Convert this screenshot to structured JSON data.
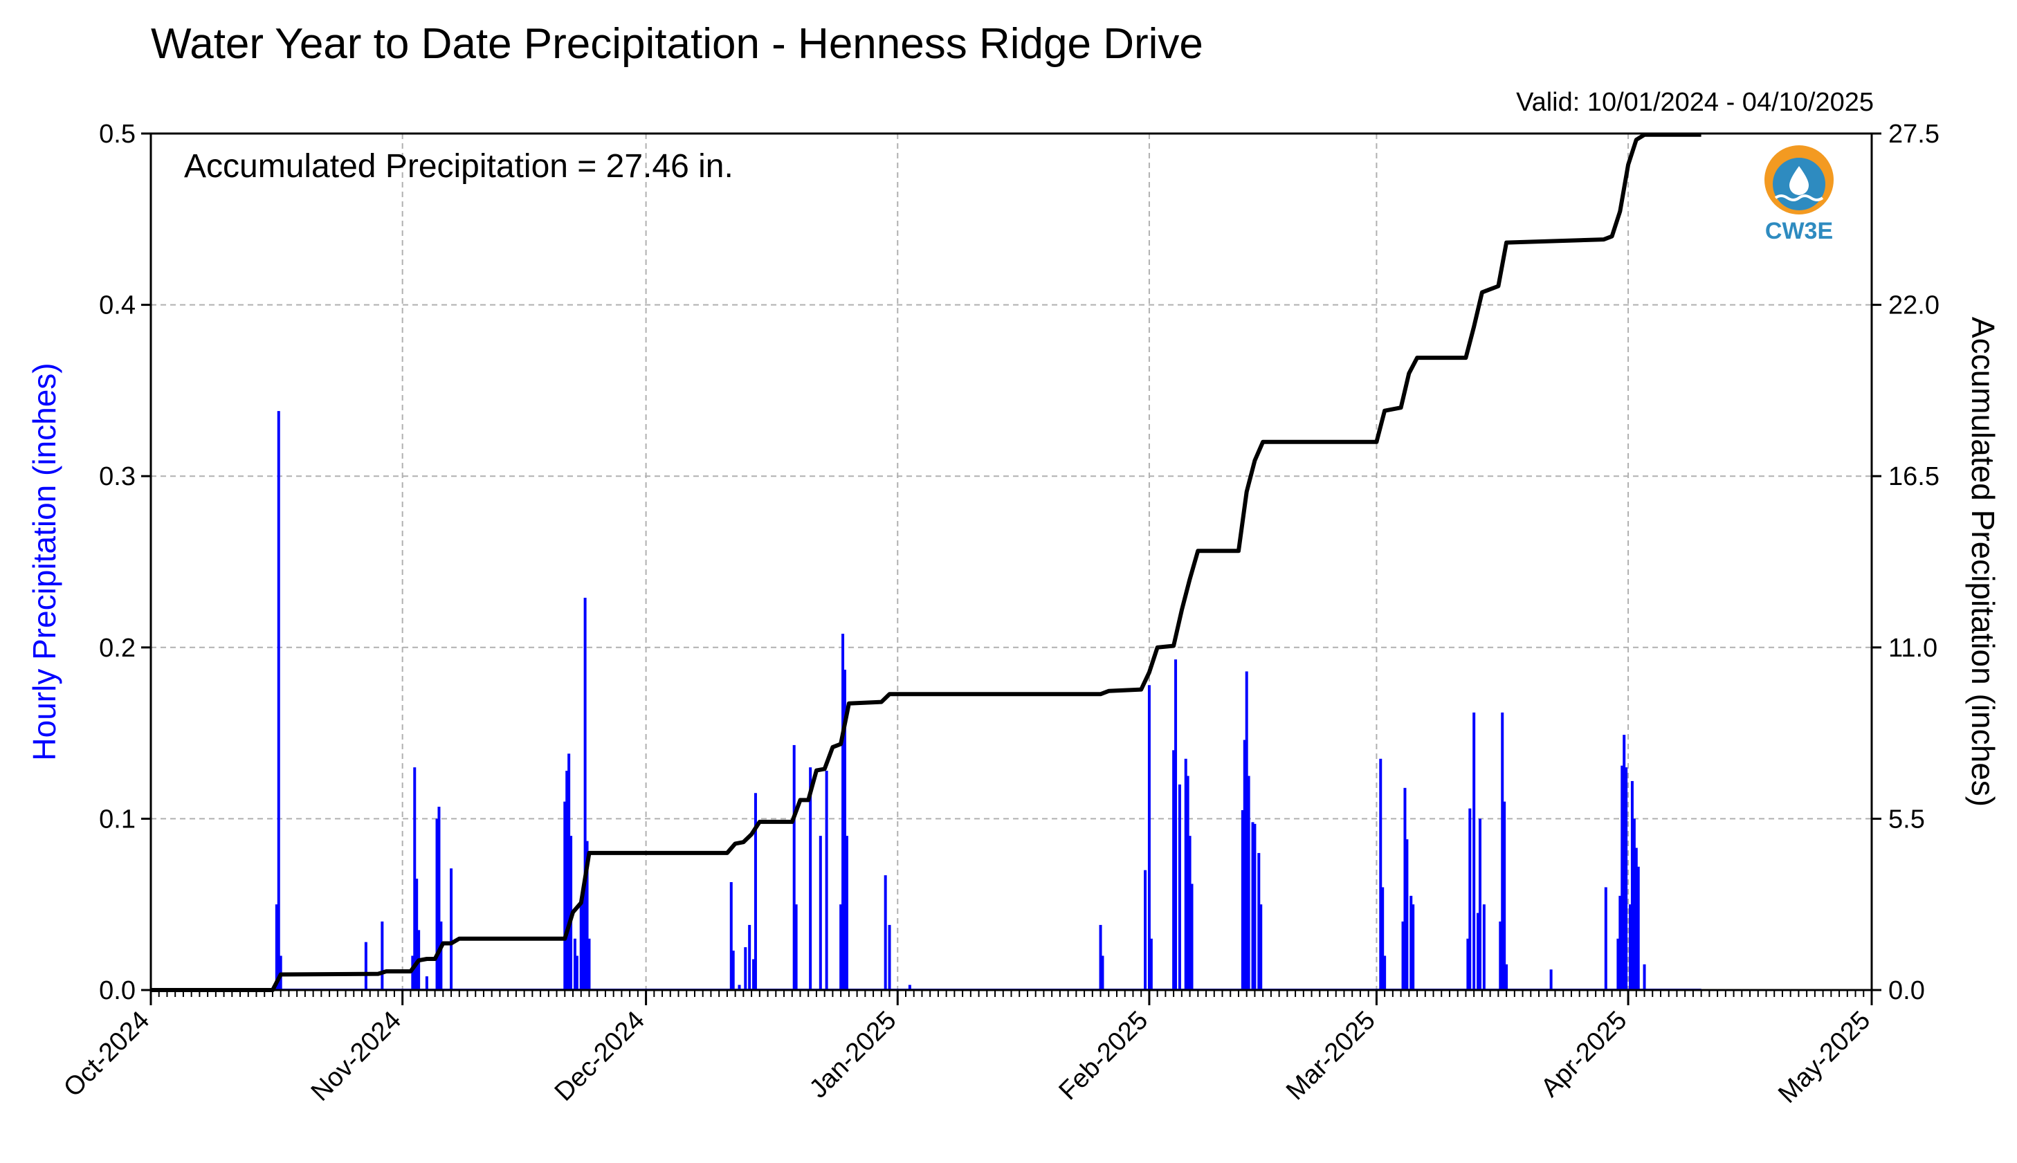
{
  "chart_data": {
    "type": "bar",
    "title": "Water Year to Date Precipitation - Henness Ridge Drive",
    "subtitle": "Valid: 10/01/2024 - 04/10/2025",
    "annotation": "Accumulated Precipitation = 27.46 in.",
    "logo_text": "CW3E",
    "xlabel": "",
    "ylabel_left": "Hourly Precipitation (inches)",
    "ylabel_right": "Accumulated Precipitation (inches)",
    "ylim_left": [
      0,
      0.5
    ],
    "ylim_right": [
      0,
      27.5
    ],
    "xlim": [
      "2024-10-01",
      "2025-05-01"
    ],
    "grid": true,
    "colors": {
      "hourly": "#0000ff",
      "accumulated": "#000000",
      "grid": "#b0b0b0",
      "logo_orange": "#f39a21",
      "logo_blue": "#2e8bc0"
    },
    "x_tick_labels": [
      "Oct-2024",
      "Nov-2024",
      "Dec-2024",
      "Jan-2025",
      "Feb-2025",
      "Mar-2025",
      "Apr-2025",
      "May-2025"
    ],
    "y_left_tick_labels": [
      "0.0",
      "0.1",
      "0.2",
      "0.3",
      "0.4",
      "0.5"
    ],
    "y_right_tick_labels": [
      "0.0",
      "5.5",
      "11.0",
      "16.5",
      "22.0",
      "27.5"
    ],
    "series": [
      {
        "name": "Hourly Precipitation",
        "type": "bar",
        "points": [
          [
            "2024-10-16T12",
            0.05
          ],
          [
            "2024-10-16T18",
            0.338
          ],
          [
            "2024-10-17T00",
            0.02
          ],
          [
            "2024-10-27T12",
            0.028
          ],
          [
            "2024-10-29T12",
            0.04
          ],
          [
            "2024-11-02T06",
            0.02
          ],
          [
            "2024-11-02T12",
            0.13
          ],
          [
            "2024-11-02T18",
            0.065
          ],
          [
            "2024-11-03T00",
            0.035
          ],
          [
            "2024-11-04T00",
            0.008
          ],
          [
            "2024-11-05T06",
            0.1
          ],
          [
            "2024-11-05T12",
            0.107
          ],
          [
            "2024-11-05T18",
            0.04
          ],
          [
            "2024-11-07T00",
            0.071
          ],
          [
            "2024-11-21T00",
            0.11
          ],
          [
            "2024-11-21T06",
            0.128
          ],
          [
            "2024-11-21T12",
            0.138
          ],
          [
            "2024-11-21T18",
            0.09
          ],
          [
            "2024-11-22T06",
            0.03
          ],
          [
            "2024-11-22T12",
            0.02
          ],
          [
            "2024-11-23T00",
            0.05
          ],
          [
            "2024-11-23T06",
            0.055
          ],
          [
            "2024-11-23T12",
            0.229
          ],
          [
            "2024-11-23T18",
            0.087
          ],
          [
            "2024-11-24T00",
            0.03
          ],
          [
            "2024-12-11T12",
            0.063
          ],
          [
            "2024-12-11T18",
            0.023
          ],
          [
            "2024-12-12T12",
            0.003
          ],
          [
            "2024-12-13T06",
            0.025
          ],
          [
            "2024-12-13T18",
            0.038
          ],
          [
            "2024-12-14T06",
            0.018
          ],
          [
            "2024-12-14T12",
            0.115
          ],
          [
            "2024-12-19T06",
            0.143
          ],
          [
            "2024-12-19T12",
            0.05
          ],
          [
            "2024-12-21T06",
            0.13
          ],
          [
            "2024-12-22T12",
            0.09
          ],
          [
            "2024-12-23T06",
            0.128
          ],
          [
            "2024-12-25T00",
            0.05
          ],
          [
            "2024-12-25T06",
            0.208
          ],
          [
            "2024-12-25T12",
            0.187
          ],
          [
            "2024-12-25T18",
            0.09
          ],
          [
            "2024-12-30T12",
            0.067
          ],
          [
            "2024-12-31T00",
            0.038
          ],
          [
            "2025-01-02T12",
            0.003
          ],
          [
            "2025-01-26T00",
            0.038
          ],
          [
            "2025-01-26T06",
            0.02
          ],
          [
            "2025-01-31T12",
            0.07
          ],
          [
            "2025-02-01T00",
            0.178
          ],
          [
            "2025-02-01T06",
            0.03
          ],
          [
            "2025-02-04T00",
            0.14
          ],
          [
            "2025-02-04T06",
            0.193
          ],
          [
            "2025-02-04T18",
            0.12
          ],
          [
            "2025-02-05T12",
            0.135
          ],
          [
            "2025-02-05T18",
            0.125
          ],
          [
            "2025-02-06T00",
            0.09
          ],
          [
            "2025-02-06T06",
            0.062
          ],
          [
            "2025-02-12T12",
            0.105
          ],
          [
            "2025-02-12T18",
            0.146
          ],
          [
            "2025-02-13T00",
            0.186
          ],
          [
            "2025-02-13T06",
            0.125
          ],
          [
            "2025-02-13T18",
            0.098
          ],
          [
            "2025-02-14T00",
            0.097
          ],
          [
            "2025-02-14T12",
            0.08
          ],
          [
            "2025-02-14T18",
            0.05
          ],
          [
            "2025-03-01T12",
            0.135
          ],
          [
            "2025-03-01T18",
            0.06
          ],
          [
            "2025-03-02T00",
            0.02
          ],
          [
            "2025-03-04T06",
            0.04
          ],
          [
            "2025-03-04T12",
            0.118
          ],
          [
            "2025-03-04T18",
            0.088
          ],
          [
            "2025-03-05T06",
            0.055
          ],
          [
            "2025-03-05T12",
            0.05
          ],
          [
            "2025-03-12T06",
            0.03
          ],
          [
            "2025-03-12T12",
            0.106
          ],
          [
            "2025-03-13T00",
            0.162
          ],
          [
            "2025-03-13T12",
            0.045
          ],
          [
            "2025-03-13T18",
            0.1
          ],
          [
            "2025-03-14T06",
            0.05
          ],
          [
            "2025-03-16T06",
            0.04
          ],
          [
            "2025-03-16T12",
            0.162
          ],
          [
            "2025-03-16T18",
            0.11
          ],
          [
            "2025-03-17T00",
            0.015
          ],
          [
            "2025-03-22T12",
            0.012
          ],
          [
            "2025-03-29T06",
            0.06
          ],
          [
            "2025-03-30T18",
            0.03
          ],
          [
            "2025-03-31T00",
            0.055
          ],
          [
            "2025-03-31T06",
            0.131
          ],
          [
            "2025-03-31T12",
            0.149
          ],
          [
            "2025-03-31T18",
            0.13
          ],
          [
            "2025-04-01T06",
            0.05
          ],
          [
            "2025-04-01T12",
            0.122
          ],
          [
            "2025-04-01T18",
            0.1
          ],
          [
            "2025-04-02T00",
            0.083
          ],
          [
            "2025-04-02T06",
            0.072
          ],
          [
            "2025-04-03T00",
            0.015
          ]
        ]
      },
      {
        "name": "Accumulated Precipitation",
        "type": "line",
        "points": [
          [
            "2024-10-01",
            0.0
          ],
          [
            "2024-10-16",
            0.0
          ],
          [
            "2024-10-17",
            0.5
          ],
          [
            "2024-10-29",
            0.52
          ],
          [
            "2024-10-30",
            0.6
          ],
          [
            "2024-11-02",
            0.6
          ],
          [
            "2024-11-03",
            0.95
          ],
          [
            "2024-11-04",
            1.0
          ],
          [
            "2024-11-05",
            1.0
          ],
          [
            "2024-11-06",
            1.5
          ],
          [
            "2024-11-07",
            1.5
          ],
          [
            "2024-11-08",
            1.65
          ],
          [
            "2024-11-21",
            1.65
          ],
          [
            "2024-11-22",
            2.5
          ],
          [
            "2024-11-23",
            2.8
          ],
          [
            "2024-11-24",
            4.4
          ],
          [
            "2024-12-11",
            4.4
          ],
          [
            "2024-12-12",
            4.7
          ],
          [
            "2024-12-13",
            4.75
          ],
          [
            "2024-12-14",
            5.0
          ],
          [
            "2024-12-15",
            5.4
          ],
          [
            "2024-12-19",
            5.4
          ],
          [
            "2024-12-20",
            6.1
          ],
          [
            "2024-12-21",
            6.1
          ],
          [
            "2024-12-22",
            7.05
          ],
          [
            "2024-12-23",
            7.1
          ],
          [
            "2024-12-24",
            7.8
          ],
          [
            "2024-12-25",
            7.9
          ],
          [
            "2024-12-26",
            9.2
          ],
          [
            "2024-12-30",
            9.25
          ],
          [
            "2024-12-31",
            9.5
          ],
          [
            "2025-01-26",
            9.5
          ],
          [
            "2025-01-27",
            9.6
          ],
          [
            "2025-01-31",
            9.65
          ],
          [
            "2025-02-01",
            10.2
          ],
          [
            "2025-02-02",
            11.0
          ],
          [
            "2025-02-04",
            11.05
          ],
          [
            "2025-02-05",
            12.2
          ],
          [
            "2025-02-06",
            13.2
          ],
          [
            "2025-02-07",
            14.1
          ],
          [
            "2025-02-12",
            14.1
          ],
          [
            "2025-02-13",
            16.0
          ],
          [
            "2025-02-14",
            17.0
          ],
          [
            "2025-02-15",
            17.6
          ],
          [
            "2025-03-01",
            17.6
          ],
          [
            "2025-03-02",
            18.6
          ],
          [
            "2025-03-04",
            18.7
          ],
          [
            "2025-03-05",
            19.8
          ],
          [
            "2025-03-06",
            20.3
          ],
          [
            "2025-03-12",
            20.3
          ],
          [
            "2025-03-13",
            21.3
          ],
          [
            "2025-03-14",
            22.4
          ],
          [
            "2025-03-15",
            22.5
          ],
          [
            "2025-03-16",
            22.6
          ],
          [
            "2025-03-17",
            24.0
          ],
          [
            "2025-03-29",
            24.1
          ],
          [
            "2025-03-30",
            24.2
          ],
          [
            "2025-03-31",
            25.0
          ],
          [
            "2025-04-01",
            26.5
          ],
          [
            "2025-04-02",
            27.3
          ],
          [
            "2025-04-03",
            27.46
          ],
          [
            "2025-04-10",
            27.46
          ]
        ]
      }
    ]
  }
}
